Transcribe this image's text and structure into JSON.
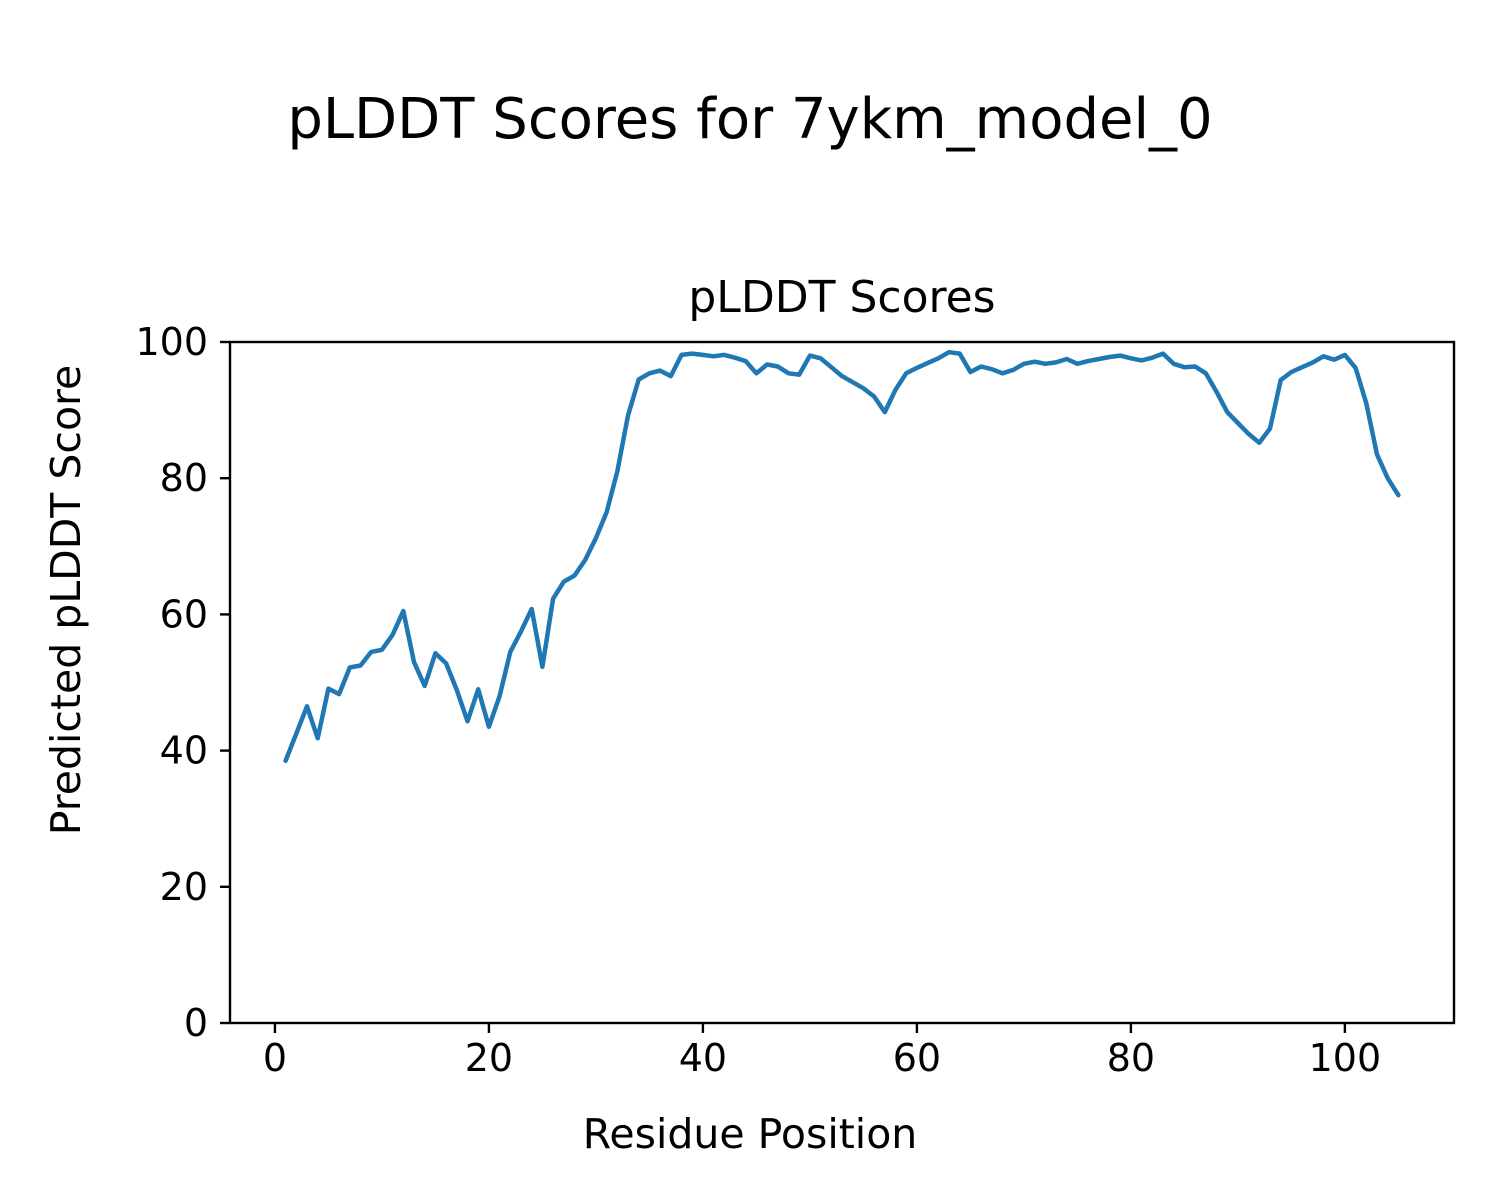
{
  "figure": {
    "suptitle": "pLDDT Scores for 7ykm_model_0",
    "axes_title": "pLDDT Scores",
    "xlabel": "Residue Position",
    "ylabel": "Predicted pLDDT Score"
  },
  "chart_data": {
    "type": "line",
    "title": "pLDDT Scores",
    "suptitle": "pLDDT Scores for 7ykm_model_0",
    "xlabel": "Residue Position",
    "ylabel": "Predicted pLDDT Score",
    "legend": null,
    "grid": false,
    "line_color": "#1f77b4",
    "axis_color": "#000000",
    "xlim": [
      -4.2,
      110.2
    ],
    "ylim": [
      0,
      100
    ],
    "x_ticks": [
      0,
      20,
      40,
      60,
      80,
      100
    ],
    "y_ticks": [
      0,
      20,
      40,
      60,
      80,
      100
    ],
    "series_name": "pLDDT",
    "x": [
      1,
      2,
      3,
      4,
      5,
      6,
      7,
      8,
      9,
      10,
      11,
      12,
      13,
      14,
      15,
      16,
      17,
      18,
      19,
      20,
      21,
      22,
      23,
      24,
      25,
      26,
      27,
      28,
      29,
      30,
      31,
      32,
      33,
      34,
      35,
      36,
      37,
      38,
      39,
      40,
      41,
      42,
      43,
      44,
      45,
      46,
      47,
      48,
      49,
      50,
      51,
      52,
      53,
      54,
      55,
      56,
      57,
      58,
      59,
      60,
      61,
      62,
      63,
      64,
      65,
      66,
      67,
      68,
      69,
      70,
      71,
      72,
      73,
      74,
      75,
      76,
      77,
      78,
      79,
      80,
      81,
      82,
      83,
      84,
      85,
      86,
      87,
      88,
      89,
      90,
      91,
      92,
      93,
      94,
      95,
      96,
      97,
      98,
      99,
      100,
      101,
      102,
      103,
      104,
      105
    ],
    "y": [
      38.5,
      42.5,
      46.5,
      41.8,
      49.1,
      48.3,
      52.2,
      52.5,
      54.5,
      54.8,
      57.0,
      60.5,
      53.0,
      49.5,
      54.3,
      52.8,
      48.9,
      44.3,
      49.0,
      43.5,
      48.0,
      54.5,
      57.5,
      60.8,
      52.3,
      62.3,
      64.8,
      65.7,
      68.0,
      71.2,
      75.0,
      81.0,
      89.2,
      94.5,
      95.4,
      95.8,
      95.0,
      98.1,
      98.3,
      98.1,
      97.9,
      98.1,
      97.7,
      97.2,
      95.4,
      96.7,
      96.4,
      95.4,
      95.2,
      98.0,
      97.6,
      96.3,
      95.0,
      94.1,
      93.2,
      92.0,
      89.7,
      93.0,
      95.4,
      96.2,
      96.9,
      97.6,
      98.5,
      98.3,
      95.6,
      96.4,
      96.0,
      95.4,
      95.9,
      96.8,
      97.1,
      96.8,
      97.0,
      97.5,
      96.8,
      97.2,
      97.5,
      97.8,
      98.0,
      97.6,
      97.3,
      97.7,
      98.3,
      96.8,
      96.3,
      96.4,
      95.4,
      92.7,
      89.7,
      88.1,
      86.5,
      85.2,
      87.3,
      94.4,
      95.6,
      96.3,
      97.0,
      97.9,
      97.4,
      98.1,
      96.2,
      91.0,
      83.5,
      80.0,
      77.5
    ]
  }
}
